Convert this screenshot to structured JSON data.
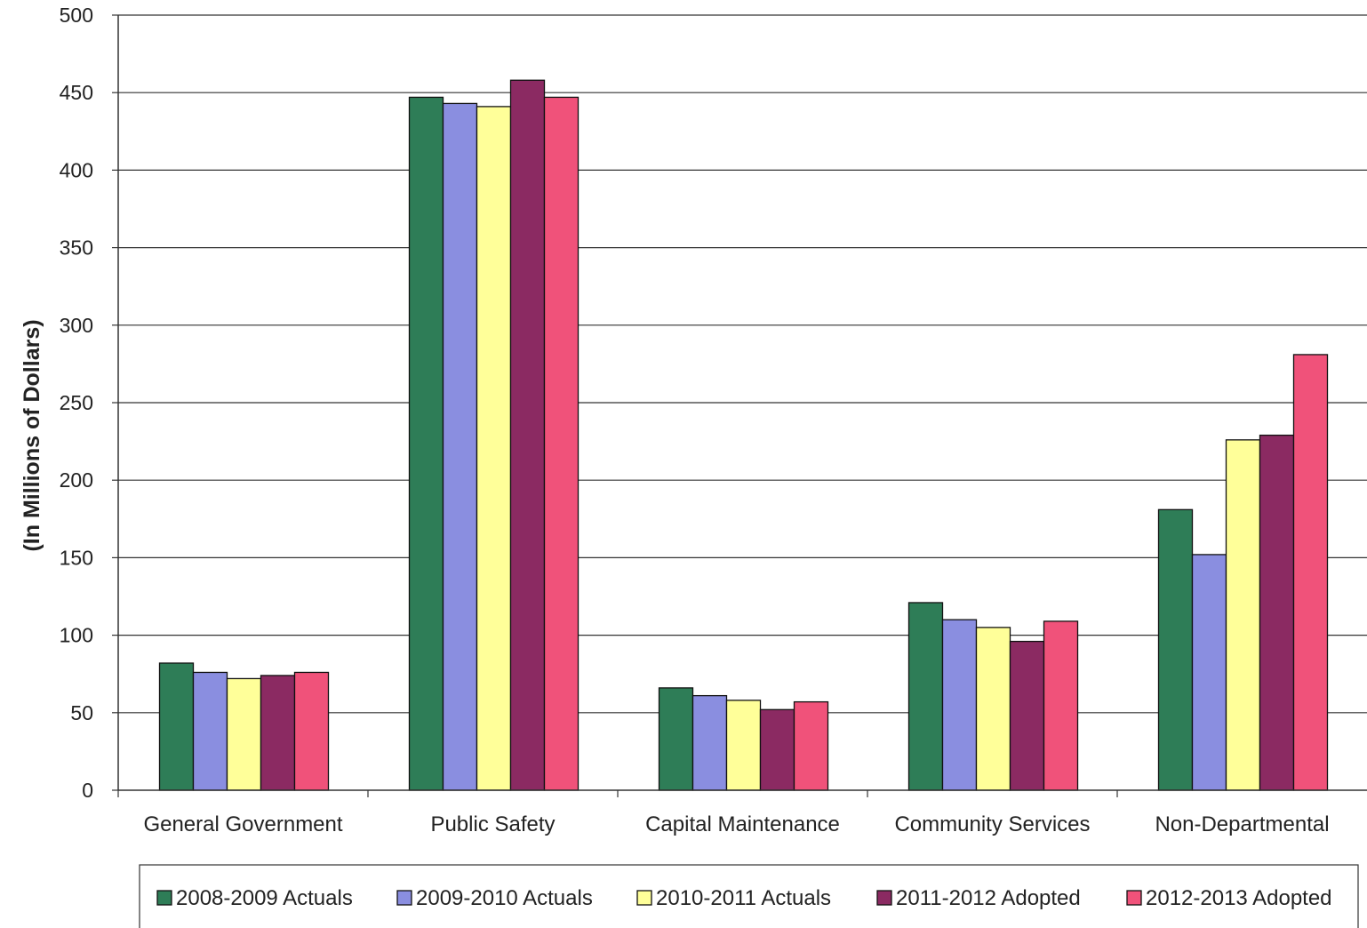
{
  "chart_data": {
    "type": "bar",
    "title": "",
    "xlabel": "",
    "ylabel": "(In Millions of Dollars)",
    "ylim": [
      0,
      500
    ],
    "yticks": [
      "0",
      "50",
      "100",
      "150",
      "200",
      "250",
      "300",
      "350",
      "400",
      "450",
      "500"
    ],
    "grid": true,
    "legend_position": "bottom",
    "categories": [
      "General Government",
      "Public Safety",
      "Capital Maintenance",
      "Community Services",
      "Non-Departmental"
    ],
    "series": [
      {
        "name": "2008-2009 Actuals",
        "color": "#2e7d57",
        "values": [
          82,
          447,
          66,
          121,
          181
        ]
      },
      {
        "name": "2009-2010 Actuals",
        "color": "#8a8ee0",
        "values": [
          76,
          443,
          61,
          110,
          152
        ]
      },
      {
        "name": "2010-2011 Actuals",
        "color": "#ffff99",
        "values": [
          72,
          441,
          58,
          105,
          226
        ]
      },
      {
        "name": "2011-2012 Adopted",
        "color": "#8b2a62",
        "values": [
          74,
          458,
          52,
          96,
          229
        ]
      },
      {
        "name": "2012-2013 Adopted",
        "color": "#f0527a",
        "values": [
          76,
          447,
          57,
          109,
          281
        ]
      }
    ]
  }
}
